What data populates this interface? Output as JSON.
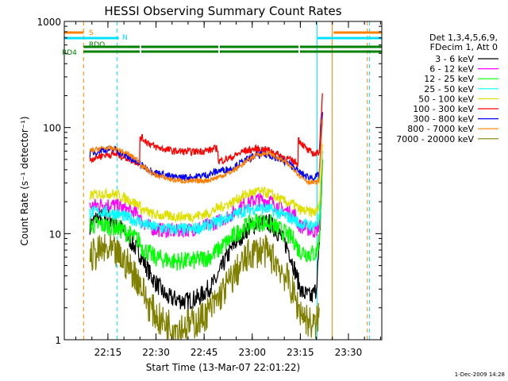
{
  "chart_data": {
    "type": "line",
    "title": "HESSI Observing Summary Count Rates",
    "xlabel": "Start Time (13-Mar-07 22:01:22)",
    "ylabel": "Count Rate (s⁻¹ detector⁻¹)",
    "y_scale": "log",
    "ylim": [
      1,
      1000
    ],
    "x_unit": "minutes after 22:01:22",
    "xlim": [
      0,
      99
    ],
    "x_ticks": [
      {
        "label": "22:15",
        "minute": 13.6
      },
      {
        "label": "22:30",
        "minute": 28.6
      },
      {
        "label": "22:45",
        "minute": 43.6
      },
      {
        "label": "23:00",
        "minute": 58.6
      },
      {
        "label": "23:15",
        "minute": 73.6
      },
      {
        "label": "23:30",
        "minute": 88.6
      }
    ],
    "y_ticks": [
      {
        "label": "1",
        "value": 1
      },
      {
        "label": "10",
        "value": 10
      },
      {
        "label": "100",
        "value": 100
      },
      {
        "label": "1000",
        "value": 1000
      }
    ],
    "legend": {
      "placement": "right",
      "header": [
        "Det 1,3,4,5,6,9,",
        "FDecim 1, Att 0"
      ]
    },
    "flags": [
      {
        "name": "S",
        "color": "#ff8000",
        "segments": [
          [
            0,
            6
          ],
          [
            83.5,
            99
          ]
        ]
      },
      {
        "name": "N",
        "color": "#00e0ff",
        "segments": [
          [
            0,
            17
          ],
          [
            78.5,
            99
          ]
        ]
      },
      {
        "name": "RDO",
        "color": "#008000",
        "segments": [
          [
            6,
            23.5
          ],
          [
            23.5,
            48
          ],
          [
            48,
            73
          ],
          [
            73,
            99
          ]
        ]
      },
      {
        "name": "RD4",
        "color": "#008000",
        "segments": [
          [
            6,
            23.5
          ],
          [
            23.5,
            48
          ],
          [
            48,
            73
          ],
          [
            73,
            99
          ]
        ]
      }
    ],
    "markers": [
      {
        "color": "#00e0ff",
        "style": "solid",
        "minute": 0
      },
      {
        "color": "#ff8000",
        "style": "dashed",
        "minute": 6
      },
      {
        "color": "#00e0ff",
        "style": "dashed",
        "minute": 16.5
      },
      {
        "color": "#00e0ff",
        "style": "solid",
        "minute": 78.8
      },
      {
        "color": "#ff8000",
        "style": "solid",
        "minute": 83.5
      },
      {
        "color": "#ff8000",
        "style": "dashed",
        "minute": 94.5
      },
      {
        "color": "#00e0ff",
        "style": "dashed",
        "minute": 95.2
      }
    ],
    "series": [
      {
        "name": "3 - 6 keV",
        "color": "#000000",
        "x": [
          8,
          10,
          13,
          16,
          19,
          23.5,
          27,
          32,
          38,
          42,
          47,
          48,
          50,
          53,
          57,
          60,
          64,
          67,
          70,
          73,
          74,
          77,
          78.5,
          79.5,
          80.5
        ],
        "y": [
          12,
          14,
          14.5,
          13,
          10,
          6.5,
          4,
          2.5,
          2.3,
          2.5,
          3.5,
          4,
          5.5,
          8,
          11,
          12.5,
          12.5,
          10,
          7,
          3.5,
          2.8,
          2.5,
          3,
          7,
          50
        ]
      },
      {
        "name": "6 - 12 keV",
        "color": "#ff00ff",
        "x": [
          8,
          12,
          16,
          20,
          23.5,
          24,
          28,
          34,
          40,
          45,
          48,
          52,
          56,
          60,
          64,
          68,
          72,
          73,
          76,
          78.5,
          79.5,
          80.5
        ],
        "y": [
          18,
          19,
          18.5,
          16.5,
          15,
          13,
          11,
          10.5,
          11,
          12,
          13,
          15,
          19,
          21,
          20.5,
          17,
          15,
          12,
          11,
          10.5,
          12,
          60
        ]
      },
      {
        "name": "12 - 25 keV",
        "color": "#00ff00",
        "x": [
          8,
          12,
          16,
          20,
          23.5,
          24,
          28,
          34,
          40,
          45,
          48,
          52,
          56,
          60,
          64,
          68,
          72,
          73,
          76,
          78.5,
          79.5,
          80.5
        ],
        "y": [
          12,
          12,
          11.5,
          10,
          8.5,
          7.5,
          6,
          5.5,
          5.5,
          6,
          7,
          9,
          11.5,
          13,
          12.5,
          10.5,
          8.5,
          7,
          6.5,
          6.5,
          9,
          50
        ]
      },
      {
        "name": "25 - 50 keV",
        "color": "#00ffff",
        "x": [
          8,
          12,
          16,
          20,
          23.5,
          24,
          28,
          34,
          40,
          45,
          48,
          52,
          56,
          60,
          64,
          68,
          72,
          73,
          76,
          78.5,
          79.5,
          80.5
        ],
        "y": [
          16,
          16,
          15.5,
          14,
          13,
          12.5,
          11.5,
          11,
          11,
          12,
          13,
          14.5,
          16.5,
          17.5,
          17,
          15,
          13.5,
          12.5,
          12,
          12,
          14,
          60
        ]
      },
      {
        "name": "50 - 100 keV",
        "color": "#e0e000",
        "x": [
          8,
          12,
          16,
          20,
          23.5,
          24,
          28,
          34,
          40,
          45,
          48,
          52,
          56,
          60,
          64,
          68,
          72,
          73,
          76,
          78.5,
          79.5,
          80.5
        ],
        "y": [
          23,
          24,
          23.5,
          21,
          18.5,
          17,
          15,
          14.5,
          14.5,
          15.5,
          17.5,
          19.5,
          23,
          25,
          24,
          20.5,
          18.5,
          17,
          16,
          16,
          18,
          70
        ]
      },
      {
        "name": "100 - 300 keV",
        "color": "#ff0000",
        "x": [
          8,
          12,
          16,
          20,
          23.5,
          23.6,
          28,
          34,
          40,
          45,
          47.9,
          48,
          52,
          56,
          60,
          64,
          68,
          72.9,
          73,
          76,
          78.5,
          79.5,
          80.5
        ],
        "y": [
          50,
          55,
          56,
          51,
          46,
          82,
          66,
          60,
          59,
          61,
          64,
          48,
          52,
          60,
          63,
          61,
          53,
          46,
          78,
          60,
          56,
          60,
          210
        ]
      },
      {
        "name": "300 - 800 keV",
        "color": "#0000ff",
        "x": [
          8,
          12,
          16,
          20,
          23.5,
          24,
          28,
          34,
          40,
          45,
          48,
          52,
          56,
          60,
          64,
          68,
          72,
          73,
          76,
          78.5,
          79.5,
          80.5
        ],
        "y": [
          57,
          62,
          62,
          52,
          46,
          44,
          38,
          34,
          34,
          36,
          39,
          41,
          48,
          55,
          55,
          49,
          42,
          38,
          34,
          34,
          36,
          140
        ]
      },
      {
        "name": "800 - 7000 keV",
        "color": "#ff8000",
        "x": [
          8,
          12,
          16,
          20,
          23.5,
          24,
          28,
          34,
          40,
          45,
          48,
          52,
          56,
          60,
          64,
          68,
          72,
          73,
          76,
          78.5,
          79.5,
          80.5
        ],
        "y": [
          60,
          64,
          63,
          56,
          48,
          44,
          36,
          32,
          31,
          32,
          34,
          38,
          46,
          56,
          57,
          49,
          40,
          36,
          31,
          30,
          32,
          120
        ]
      },
      {
        "name": "7000 - 20000 keV",
        "color": "#808000",
        "x": [
          8,
          12,
          16,
          20,
          23.5,
          26,
          30,
          36,
          42,
          46,
          50,
          54,
          58,
          62,
          66,
          70,
          73,
          76,
          78.5,
          79.5
        ],
        "y": [
          6,
          7,
          6.5,
          5,
          3.5,
          2.2,
          1.5,
          1.3,
          1.5,
          2,
          3,
          4.5,
          6.5,
          7,
          5.5,
          3.5,
          2,
          1.5,
          1.3,
          2
        ]
      }
    ],
    "timestamp": "1-Dec-2009 14:28"
  }
}
